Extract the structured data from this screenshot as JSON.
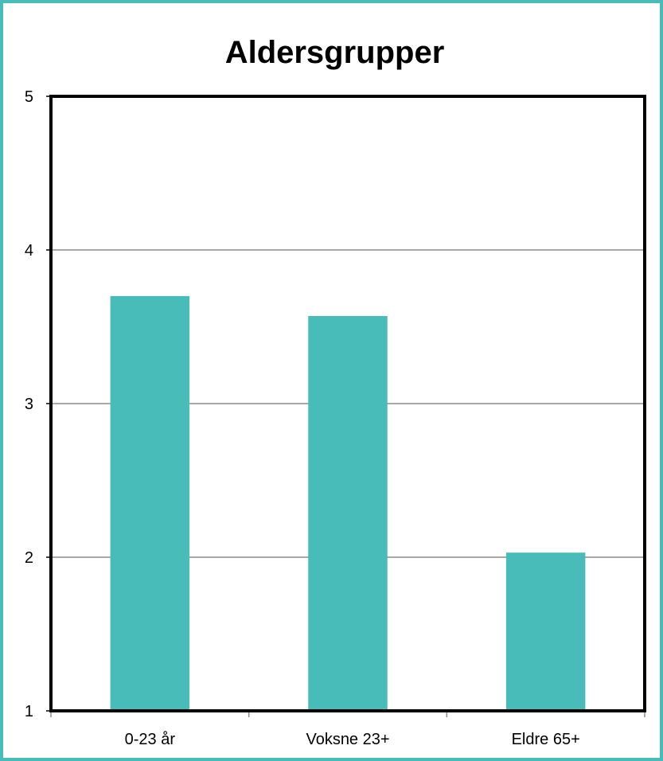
{
  "chart_data": {
    "type": "bar",
    "title": "Aldersgrupper",
    "categories": [
      "0-23 år",
      "Voksne 23+",
      "Eldre 65+"
    ],
    "values": [
      3.7,
      3.57,
      2.03
    ],
    "ylim": [
      1,
      5
    ],
    "yticks": [
      "1",
      "2",
      "3",
      "4",
      "5"
    ],
    "grid": true,
    "legend": "none",
    "colors": {
      "bar": "#47bcb8",
      "frame": "#47bcb8",
      "grid": "#8c8c8c",
      "axis": "#000000"
    }
  }
}
